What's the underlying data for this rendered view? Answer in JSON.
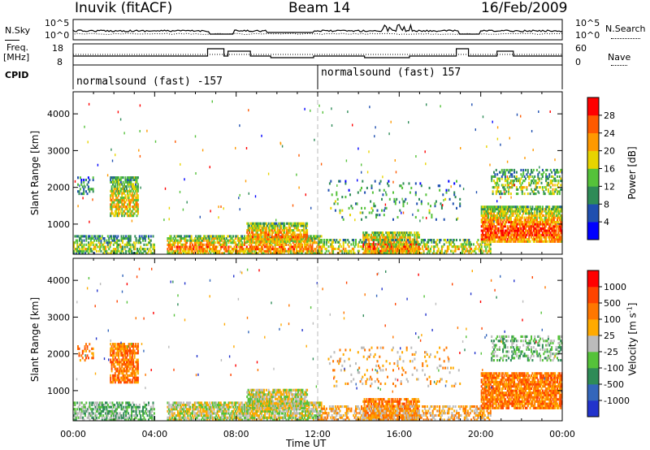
{
  "header": {
    "station": "Inuvik (fitACF)",
    "beam": "Beam 14",
    "date": "16/Feb/2009"
  },
  "status_panels": {
    "nsky": {
      "label": "N.Sky",
      "yticks": [
        "10^5",
        "10^0"
      ]
    },
    "nsearch": {
      "label": "N.Search",
      "yticks": [
        "10^5",
        "10^0"
      ]
    },
    "freq": {
      "label_line1": "Freq.",
      "label_line2": "[MHz]",
      "yticks": [
        "18",
        "8"
      ]
    },
    "nave": {
      "label": "Nave",
      "yticks": [
        "60",
        "0"
      ]
    },
    "cpid": {
      "label": "CPID",
      "segments": [
        {
          "start_hour": 0,
          "end_hour": 12,
          "text": "normalsound (fast) -157"
        },
        {
          "start_hour": 12,
          "end_hour": 24,
          "text": "normalsound (fast) 157"
        }
      ]
    }
  },
  "chart_data": [
    {
      "type": "heatmap",
      "quantity": "power",
      "xlabel": "",
      "ylabel": "Slant Range [km]",
      "xlim": [
        0,
        24
      ],
      "ylim": [
        180,
        4600
      ],
      "yticks": [
        1000,
        2000,
        3000,
        4000
      ],
      "colorbar": {
        "label": "Power [dB]",
        "ticks": [
          "4",
          "8",
          "12",
          "16",
          "20",
          "24",
          "28"
        ],
        "colors": [
          "#0000ff",
          "#1f4fb0",
          "#2e8b57",
          "#55c23a",
          "#e8d400",
          "#ff9900",
          "#ff5a00",
          "#ff0000"
        ]
      }
    },
    {
      "type": "heatmap",
      "quantity": "velocity",
      "xlabel": "Time UT",
      "ylabel": "Slant Range [km]",
      "xlim": [
        0,
        24
      ],
      "ylim": [
        180,
        4600
      ],
      "yticks": [
        1000,
        2000,
        3000,
        4000
      ],
      "xticks": [
        "00:00",
        "04:00",
        "08:00",
        "12:00",
        "16:00",
        "20:00",
        "00:00"
      ],
      "colorbar": {
        "label": "Velocity [m s",
        "label_sup": "-1",
        "label_end": "]",
        "ticks": [
          "1000",
          "500",
          "100",
          "25",
          "-25",
          "-100",
          "-500",
          "-1000"
        ],
        "colors": [
          "#2233cc",
          "#3366bb",
          "#2e8b57",
          "#55c23a",
          "#bbbbbb",
          "#ffaa00",
          "#ff7700",
          "#ff4400",
          "#ff0000"
        ]
      }
    }
  ]
}
